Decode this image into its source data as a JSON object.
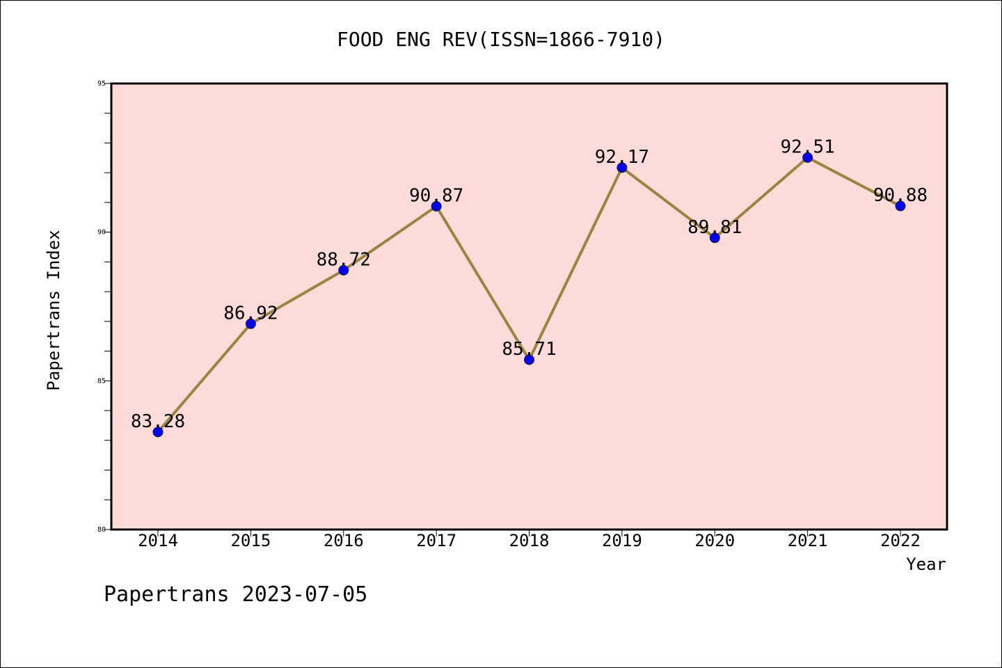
{
  "chart_data": {
    "type": "line",
    "title": "FOOD ENG REV(ISSN=1866-7910)",
    "xlabel": "Year",
    "ylabel": "Papertrans Index",
    "x": [
      "2014",
      "2015",
      "2016",
      "2017",
      "2018",
      "2019",
      "2020",
      "2021",
      "2022"
    ],
    "series": [
      {
        "values": [
          83.28,
          86.92,
          88.72,
          90.87,
          85.71,
          92.17,
          89.81,
          92.51,
          90.88
        ]
      }
    ],
    "data_labels": [
      "83.28",
      "86.92",
      "88.72",
      "90.87",
      "85.71",
      "92.17",
      "89.81",
      "92.51",
      "90.88"
    ],
    "ylim": [
      80,
      95
    ],
    "yticks": [
      "80",
      "85",
      "90",
      "95"
    ],
    "grid": false,
    "colors": {
      "plot_bg": "#fddbd8",
      "line": "#9a8440",
      "marker": "#0000ff"
    }
  },
  "footer": {
    "text": "Papertrans 2023-07-05"
  }
}
